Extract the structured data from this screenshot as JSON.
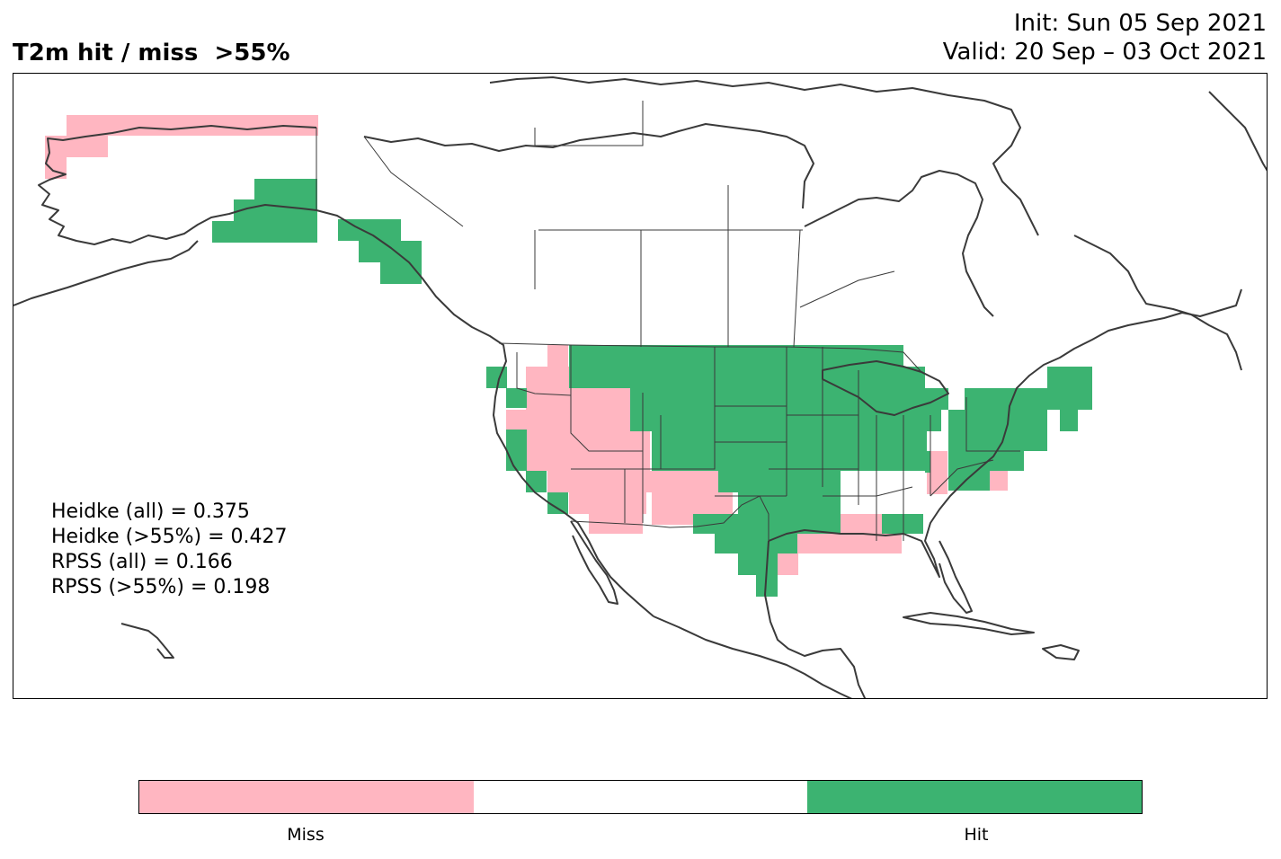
{
  "title": "T2m hit / miss  >55%",
  "init": "Init: Sun 05 Sep 2021",
  "valid": "Valid: 20 Sep – 03 Oct 2021",
  "scores": [
    "Heidke (all) = 0.375",
    "Heidke (>55%) = 0.427",
    "RPSS (all) = 0.166",
    "RPSS (>55%) = 0.198"
  ],
  "colors": {
    "miss": "#ffb6c1",
    "neutral": "#ffffff",
    "hit": "#3cb371",
    "coast": "#3a3a3a"
  },
  "colorbar": {
    "labels": [
      "Miss",
      "Hit"
    ]
  }
}
